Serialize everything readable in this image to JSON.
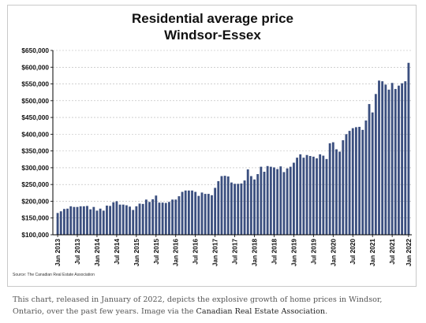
{
  "chart_data": {
    "type": "bar",
    "title_lines": [
      "Residential average price",
      "Windsor-Essex"
    ],
    "ylim": [
      100000,
      650000
    ],
    "yticks": [
      100000,
      150000,
      200000,
      250000,
      300000,
      350000,
      400000,
      450000,
      500000,
      550000,
      600000,
      650000
    ],
    "ytick_labels": [
      "$100,000",
      "$150,000",
      "$200,000",
      "$250,000",
      "$300,000",
      "$350,000",
      "$400,000",
      "$450,000",
      "$500,000",
      "$550,000",
      "$600,000",
      "$650,000"
    ],
    "xtick_labels": [
      "Jan 2013",
      "Jul 2013",
      "Jan 2014",
      "Jul 2014",
      "Jan 2015",
      "Jul 2015",
      "Jan 2016",
      "Jul 2016",
      "Jan 2017",
      "Jul 2017",
      "Jan 2018",
      "Jul 2018",
      "Jan 2019",
      "Jul 2019",
      "Jan 2020",
      "Jul 2020",
      "Jan 2021",
      "Jul 2021",
      "Jan 2022"
    ],
    "grid": true,
    "bar_color": "#3b4f7f",
    "source": "Source: The Canadian Real Estate Association",
    "values": [
      165000,
      170000,
      177000,
      178000,
      185000,
      183000,
      183000,
      185000,
      185000,
      186000,
      176000,
      183000,
      172000,
      178000,
      172000,
      187000,
      186000,
      197000,
      200000,
      190000,
      190000,
      188000,
      184000,
      174000,
      185000,
      193000,
      192000,
      205000,
      198000,
      206000,
      217000,
      196000,
      196000,
      195000,
      198000,
      205000,
      205000,
      215000,
      228000,
      232000,
      232000,
      232000,
      228000,
      216000,
      226000,
      222000,
      222000,
      218000,
      240000,
      260000,
      275000,
      276000,
      274000,
      256000,
      252000,
      252000,
      253000,
      262000,
      295000,
      275000,
      265000,
      281000,
      303000,
      288000,
      305000,
      303000,
      301000,
      296000,
      304000,
      287000,
      298000,
      303000,
      315000,
      330000,
      340000,
      330000,
      338000,
      335000,
      333000,
      328000,
      340000,
      336000,
      326000,
      373000,
      376000,
      355000,
      348000,
      382000,
      400000,
      410000,
      418000,
      421000,
      422000,
      413000,
      441000,
      490000,
      465000,
      520000,
      560000,
      558000,
      548000,
      533000,
      553000,
      535000,
      545000,
      552000,
      558000,
      613000
    ]
  },
  "caption": {
    "text": "This chart, released in January of 2022, depicts the explosive growth of home prices in Windsor, Ontario, over the past few years. Image via the ",
    "link": "Canadian Real Estate Association",
    "end": "."
  }
}
